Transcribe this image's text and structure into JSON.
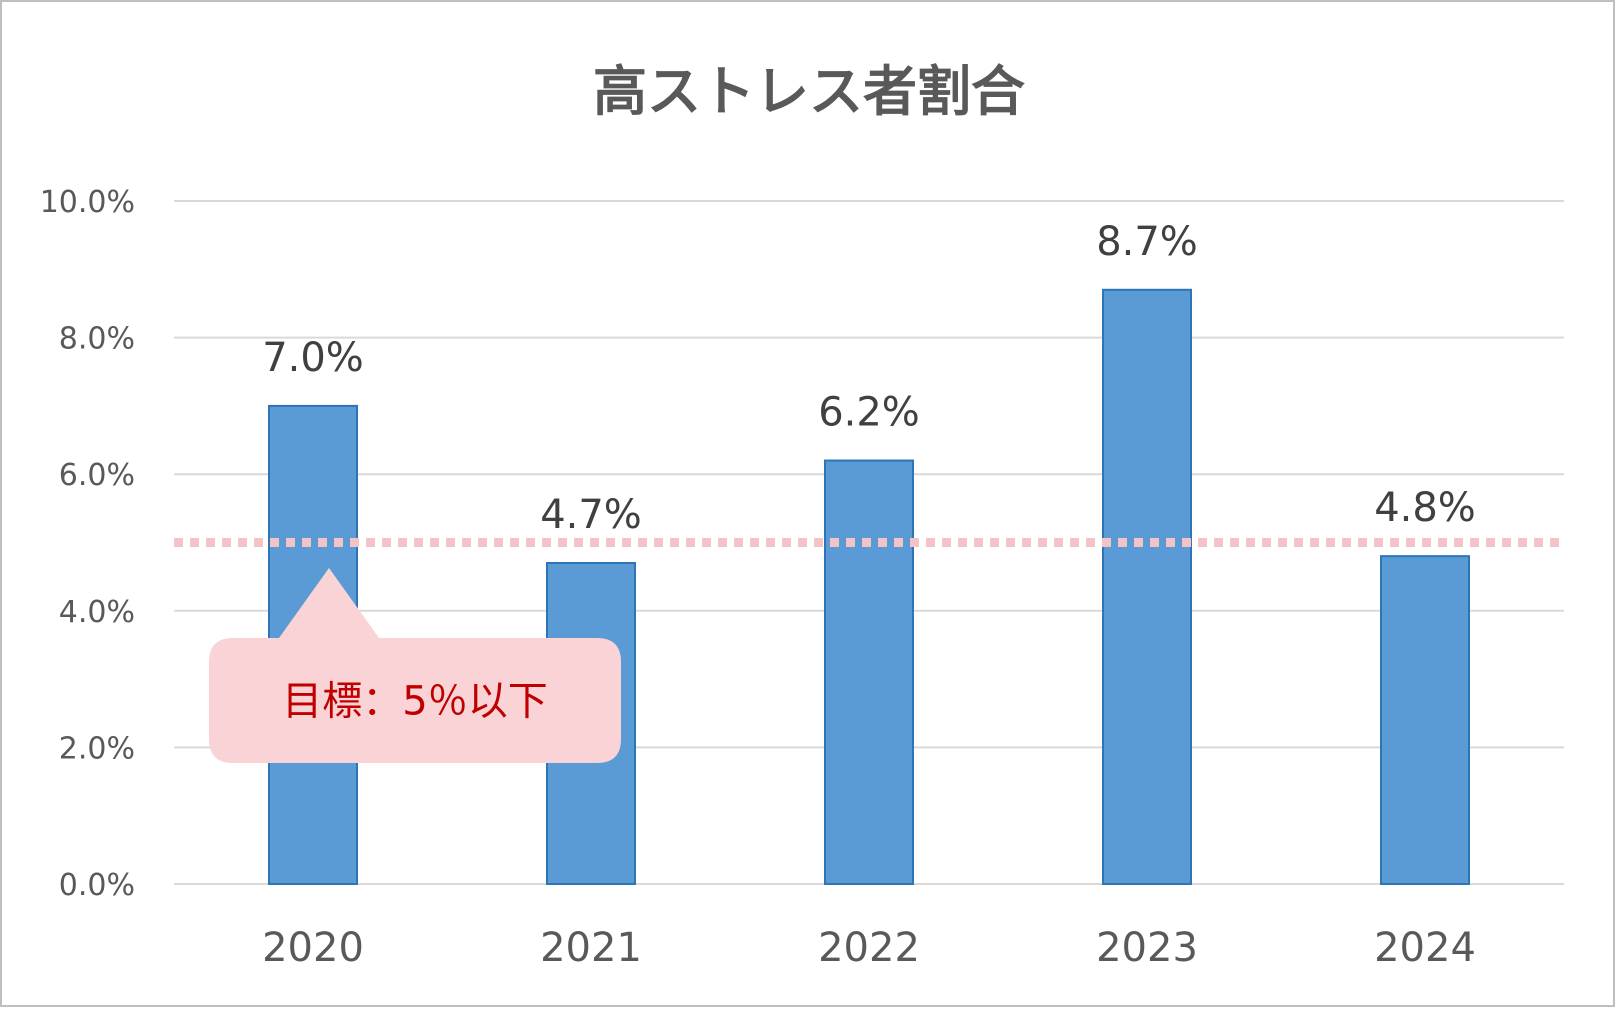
{
  "chart_data": {
    "type": "bar",
    "title": "高ストレス者割合",
    "categories": [
      "2020",
      "2021",
      "2022",
      "2023",
      "2024"
    ],
    "values": [
      7.0,
      4.7,
      6.2,
      8.7,
      4.8
    ],
    "data_labels": [
      "7.0%",
      "4.7%",
      "6.2%",
      "8.7%",
      "4.8%"
    ],
    "ylim": [
      0,
      10
    ],
    "y_ticks": [
      0,
      2,
      4,
      6,
      8,
      10
    ],
    "y_tick_labels": [
      "0.0%",
      "2.0%",
      "4.0%",
      "6.0%",
      "8.0%",
      "10.0%"
    ],
    "xlabel": "",
    "ylabel": "",
    "grid": true,
    "legend": "none",
    "target_line": {
      "value": 5.0,
      "style": "dotted",
      "color": "#f4c3c8"
    },
    "annotation": {
      "text": "目標：5％以下",
      "background": "#f9d3d6",
      "text_color": "#c00000"
    },
    "colors": {
      "bar_fill": "#5b9bd5",
      "bar_stroke": "#2e75b6",
      "grid": "#d9d9d9",
      "axis": "#d9d9d9",
      "frame": "#bfbfbf"
    }
  }
}
